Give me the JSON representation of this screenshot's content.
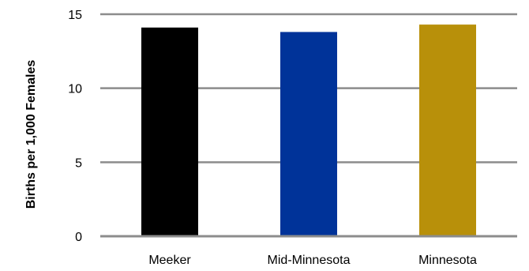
{
  "chart_data": {
    "type": "bar",
    "title": "",
    "xlabel": "",
    "ylabel": "Births per 1,000 Females",
    "categories": [
      "Meeker",
      "Mid-Minnesota",
      "Minnesota"
    ],
    "values": [
      14.1,
      13.8,
      14.3
    ],
    "bar_colors": [
      "#000000",
      "#003399",
      "#B8900A"
    ],
    "ylim": [
      0,
      15
    ],
    "yticks": [
      0,
      5,
      10,
      15
    ],
    "ytick_labels": [
      "0",
      "5",
      "10",
      "15"
    ],
    "grid": true,
    "gridline_color": "#8c8c8c",
    "legend": "none"
  }
}
